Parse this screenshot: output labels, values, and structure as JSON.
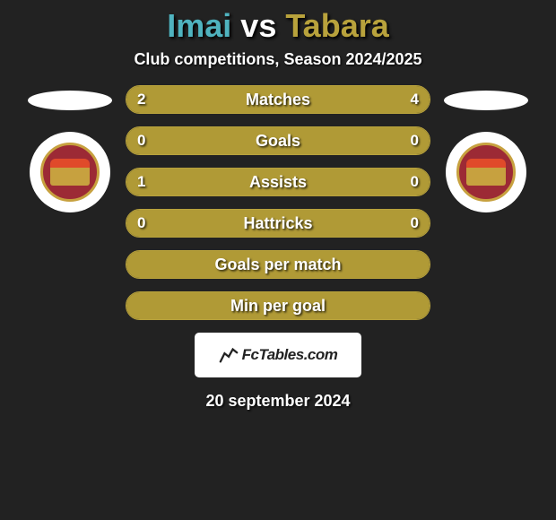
{
  "title": {
    "player_a": "Imai",
    "vs": "vs",
    "player_b": "Tabara",
    "color_a": "#4fb3bf",
    "color_vs": "#ffffff",
    "color_b": "#b8a23c"
  },
  "subtitle": "Club competitions, Season 2024/2025",
  "accent_color": "#a08a2a",
  "accent_fill": "#b09a36",
  "border_color": "#b8a23c",
  "bars": [
    {
      "label": "Matches",
      "left": "2",
      "right": "4",
      "left_pct": 30,
      "right_pct": 70,
      "show_values": true
    },
    {
      "label": "Goals",
      "left": "0",
      "right": "0",
      "left_pct": 100,
      "right_pct": 0,
      "show_values": true
    },
    {
      "label": "Assists",
      "left": "1",
      "right": "0",
      "left_pct": 80,
      "right_pct": 20,
      "show_values": true
    },
    {
      "label": "Hattricks",
      "left": "0",
      "right": "0",
      "left_pct": 100,
      "right_pct": 0,
      "show_values": true
    },
    {
      "label": "Goals per match",
      "left": "",
      "right": "",
      "left_pct": 100,
      "right_pct": 0,
      "show_values": false
    },
    {
      "label": "Min per goal",
      "left": "",
      "right": "",
      "left_pct": 100,
      "right_pct": 0,
      "show_values": false
    }
  ],
  "date": "20 september 2024",
  "logo_text": "FcTables.com"
}
